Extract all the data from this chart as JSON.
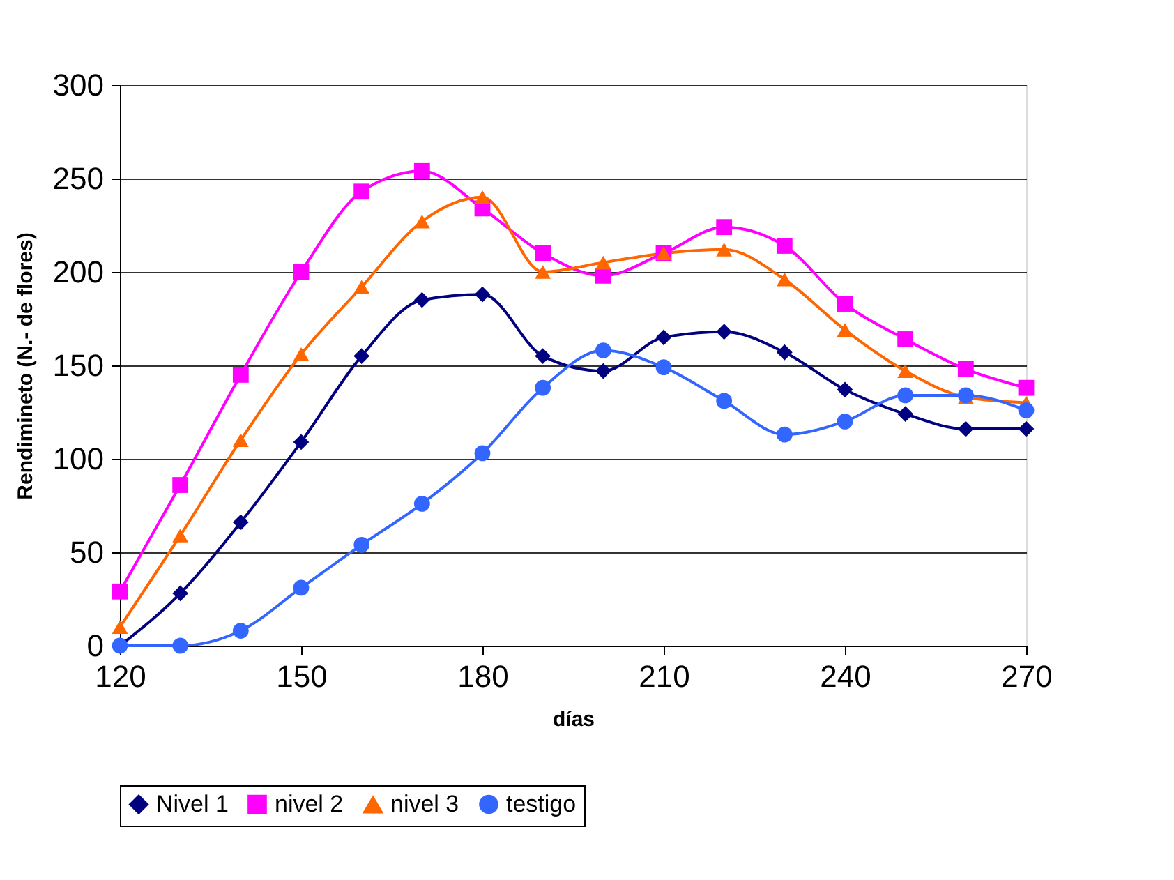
{
  "chart_data": {
    "type": "line",
    "xlabel": "días",
    "ylabel": "Rendimineto (N.- de flores)",
    "x": [
      120,
      130,
      140,
      150,
      160,
      170,
      180,
      190,
      200,
      210,
      220,
      230,
      240,
      250,
      260,
      270
    ],
    "series": [
      {
        "name": "Nivel 1",
        "color": "#000080",
        "marker": "diamond",
        "values": [
          0,
          28,
          66,
          109,
          155,
          185,
          188,
          155,
          147,
          165,
          168,
          157,
          137,
          124,
          116,
          116
        ]
      },
      {
        "name": "nivel 2",
        "color": "#ff00ff",
        "marker": "square",
        "values": [
          29,
          86,
          145,
          200,
          243,
          254,
          234,
          210,
          198,
          210,
          224,
          214,
          183,
          164,
          148,
          138
        ]
      },
      {
        "name": "nivel 3",
        "color": "#ff6600",
        "marker": "triangle",
        "values": [
          10,
          59,
          110,
          156,
          192,
          227,
          240,
          200,
          205,
          210,
          212,
          196,
          169,
          147,
          133,
          130
        ]
      },
      {
        "name": "testigo",
        "color": "#3366ff",
        "marker": "circle",
        "values": [
          0,
          0,
          8,
          31,
          54,
          76,
          103,
          138,
          158,
          149,
          131,
          113,
          120,
          134,
          134,
          126
        ]
      }
    ],
    "xlim": [
      120,
      270
    ],
    "xticks": [
      120,
      150,
      180,
      210,
      240,
      270
    ],
    "ylim": [
      0,
      300
    ],
    "yticks": [
      0,
      50,
      100,
      150,
      200,
      250,
      300
    ],
    "grid": "y",
    "legend": "bottom",
    "line_style": "solid"
  }
}
